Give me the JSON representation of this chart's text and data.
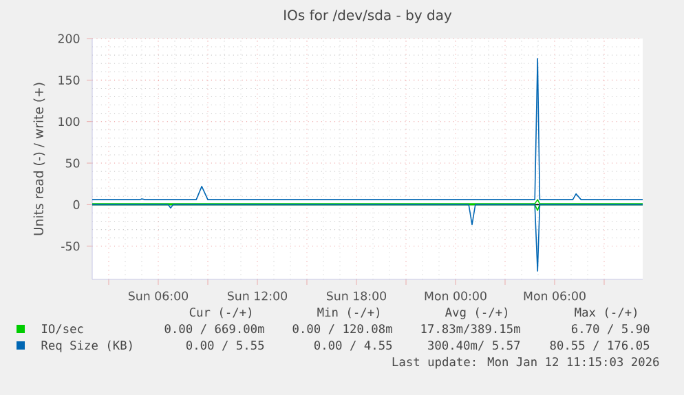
{
  "chart_data": {
    "type": "line",
    "title": "IOs for /dev/sda - by day",
    "ylabel": "Units read (-) / write (+)",
    "xlim": [
      "2026-01-11T02:00",
      "2026-01-12T11:20"
    ],
    "ylim": [
      -90,
      200
    ],
    "xticks": [
      {
        "value": "2026-01-11T03:00",
        "label": null
      },
      {
        "value": "2026-01-11T06:00",
        "label": "Sun 06:00"
      },
      {
        "value": "2026-01-11T09:00",
        "label": null
      },
      {
        "value": "2026-01-11T12:00",
        "label": "Sun 12:00"
      },
      {
        "value": "2026-01-11T15:00",
        "label": null
      },
      {
        "value": "2026-01-11T18:00",
        "label": "Sun 18:00"
      },
      {
        "value": "2026-01-11T21:00",
        "label": null
      },
      {
        "value": "2026-01-12T00:00",
        "label": "Mon 00:00"
      },
      {
        "value": "2026-01-12T03:00",
        "label": null
      },
      {
        "value": "2026-01-12T06:00",
        "label": "Mon 06:00"
      },
      {
        "value": "2026-01-12T09:00",
        "label": null
      }
    ],
    "yticks": [
      -50,
      0,
      50,
      100,
      150,
      200
    ],
    "grid": true,
    "legend": "bottom",
    "series": [
      {
        "name": "IO/sec",
        "color": "#00cc00",
        "x": [
          "2026-01-11T02:00",
          "2026-01-12T04:48",
          "2026-01-12T04:58",
          "2026-01-12T05:06",
          "2026-01-12T11:20"
        ],
        "values": [
          1,
          1,
          6,
          1,
          1
        ]
      },
      {
        "color": "#00cc00",
        "x": [
          "2026-01-11T02:00",
          "2026-01-12T04:48",
          "2026-01-12T04:58",
          "2026-01-12T05:06",
          "2026-01-12T11:20"
        ],
        "values": [
          0,
          0,
          -7,
          0,
          0
        ]
      },
      {
        "name": "Req Size (KB)",
        "color": "#0066b3",
        "x": [
          "2026-01-11T02:00",
          "2026-01-11T04:54",
          "2026-01-11T05:00",
          "2026-01-11T05:12",
          "2026-01-11T08:18",
          "2026-01-11T08:38",
          "2026-01-11T09:00",
          "2026-01-11T15:00",
          "2026-01-11T20:00",
          "2026-01-12T00:00",
          "2026-01-12T02:00",
          "2026-01-12T03:30",
          "2026-01-12T04:48",
          "2026-01-12T04:58",
          "2026-01-12T05:06",
          "2026-01-12T05:18",
          "2026-01-12T07:06",
          "2026-01-12T07:18",
          "2026-01-12T07:36",
          "2026-01-12T11:20"
        ],
        "values": [
          6,
          6,
          7,
          6,
          6,
          22,
          6,
          6,
          6,
          6,
          6,
          6,
          6,
          176,
          6,
          6,
          6,
          13,
          6,
          6
        ]
      },
      {
        "color": "#0066b3",
        "x": [
          "2026-01-11T02:00",
          "2026-01-11T06:36",
          "2026-01-11T06:45",
          "2026-01-11T06:54",
          "2026-01-12T00:48",
          "2026-01-12T01:00",
          "2026-01-12T01:12",
          "2026-01-12T04:48",
          "2026-01-12T04:58",
          "2026-01-12T05:06",
          "2026-01-12T11:20"
        ],
        "values": [
          0,
          0,
          -4,
          0,
          0,
          -24,
          0,
          0,
          -80,
          0,
          0
        ]
      }
    ],
    "ref_lines": [
      {
        "axis": "y",
        "value": 0,
        "color": "#000000"
      }
    ],
    "annotations": [
      "Cur (-/+)",
      "Min (-/+)",
      "Avg (-/+)",
      "Max (-/+)",
      "0.00 / 669.00m",
      "0.00 / 120.08m",
      "17.83m/389.15m",
      "6.70 / 5.90",
      "0.00 / 5.55",
      "0.00 / 4.55",
      "300.40m/ 5.57",
      "80.55 / 176.05",
      "Last update: Mon Jan 12 11:15:03 2026"
    ]
  }
}
